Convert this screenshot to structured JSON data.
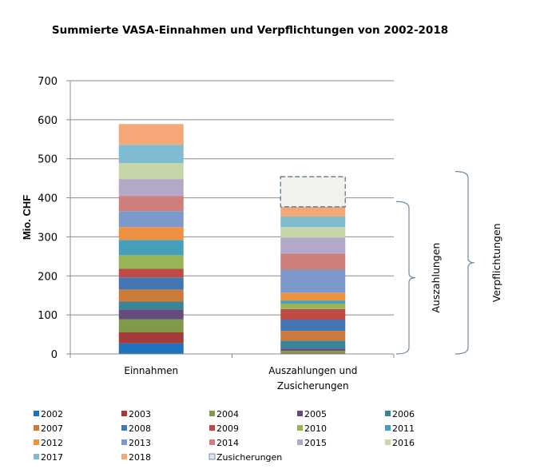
{
  "chart_data": {
    "type": "bar",
    "stacked": true,
    "title": "Summierte VASA-Einnahmen und Verpflichtungen von 2002-2018",
    "ylabel": "Mio. CHF",
    "xlabel": "",
    "ylim": [
      0,
      700
    ],
    "yticks": [
      0,
      100,
      200,
      300,
      400,
      500,
      600,
      700
    ],
    "grid": true,
    "legend_position": "bottom",
    "categories": [
      {
        "label_lines": [
          "Einnahmen"
        ]
      },
      {
        "label_lines": [
          "Auszahlungen und",
          "Zusicherungen"
        ]
      }
    ],
    "series": [
      {
        "name": "2002",
        "color": "#1f72bc",
        "values": [
          27,
          1
        ]
      },
      {
        "name": "2003",
        "color": "#a23c3a",
        "values": [
          29,
          1
        ]
      },
      {
        "name": "2004",
        "color": "#7f9a48",
        "values": [
          33,
          6
        ]
      },
      {
        "name": "2005",
        "color": "#644d7e",
        "values": [
          25,
          6
        ]
      },
      {
        "name": "2006",
        "color": "#378597",
        "values": [
          20,
          20
        ]
      },
      {
        "name": "2007",
        "color": "#cb7a3a",
        "values": [
          31,
          25
        ]
      },
      {
        "name": "2008",
        "color": "#4576b4",
        "values": [
          31,
          29
        ]
      },
      {
        "name": "2009",
        "color": "#be4b48",
        "values": [
          22,
          27
        ]
      },
      {
        "name": "2010",
        "color": "#97b554",
        "values": [
          35,
          14
        ]
      },
      {
        "name": "2011",
        "color": "#47a0bb",
        "values": [
          39,
          8
        ]
      },
      {
        "name": "2012",
        "color": "#ee9140",
        "values": [
          33,
          20
        ]
      },
      {
        "name": "2013",
        "color": "#7b9acb",
        "values": [
          41,
          59
        ]
      },
      {
        "name": "2014",
        "color": "#cd7e7d",
        "values": [
          39,
          41
        ]
      },
      {
        "name": "2015",
        "color": "#b4a8c8",
        "values": [
          43,
          41
        ]
      },
      {
        "name": "2016",
        "color": "#c6d6a8",
        "values": [
          41,
          27
        ]
      },
      {
        "name": "2017",
        "color": "#7fbcd2",
        "values": [
          47,
          27
        ]
      },
      {
        "name": "2018",
        "color": "#f5a877",
        "values": [
          53,
          25
        ]
      },
      {
        "name": "Zusicherungen",
        "color": "#f2f1eb",
        "border": "#5b7a99",
        "dashed": true,
        "values": [
          0,
          77
        ]
      }
    ],
    "annotations": [
      {
        "text": "Auszahlungen",
        "range": [
          0,
          374
        ]
      },
      {
        "text": "Verpflichtungen",
        "range": [
          0,
          451
        ]
      }
    ]
  }
}
